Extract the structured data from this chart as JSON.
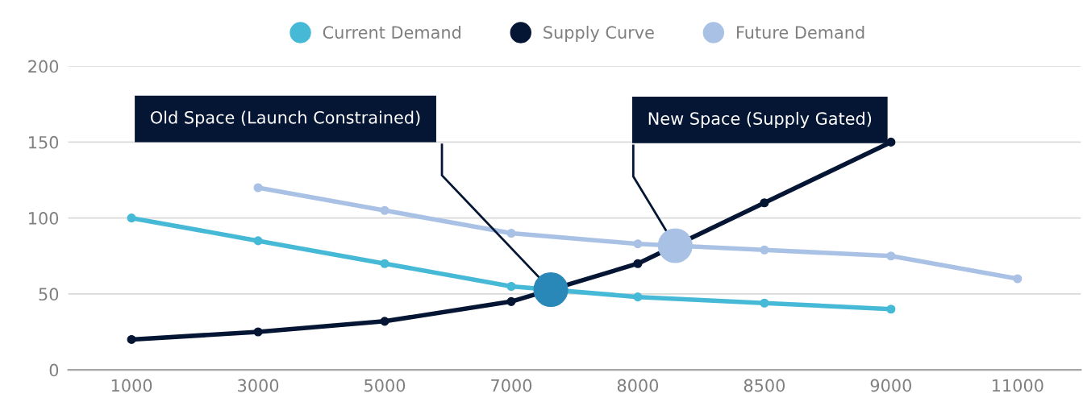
{
  "chart_data": {
    "type": "line",
    "categories": [
      "1000",
      "3000",
      "5000",
      "7000",
      "8000",
      "8500",
      "9000",
      "11000"
    ],
    "series": [
      {
        "name": "Current Demand",
        "color": "#45b9d6",
        "values": [
          100,
          85,
          70,
          55,
          48,
          44,
          40,
          null
        ]
      },
      {
        "name": "Supply Curve",
        "color": "#051634",
        "values": [
          20,
          25,
          32,
          45,
          70,
          110,
          150,
          null
        ]
      },
      {
        "name": "Future Demand",
        "color": "#a9c1e4",
        "values": [
          null,
          120,
          105,
          90,
          83,
          79,
          75,
          60
        ]
      }
    ],
    "ylim": [
      0,
      200
    ],
    "yticks": [
      0,
      50,
      100,
      150,
      200
    ],
    "grid": "y",
    "legend": "top",
    "marker": "circle",
    "line_style": "solid",
    "annotations": [
      "Old Space (Launch Constrained)",
      "New Space (Supply Gated)"
    ]
  }
}
